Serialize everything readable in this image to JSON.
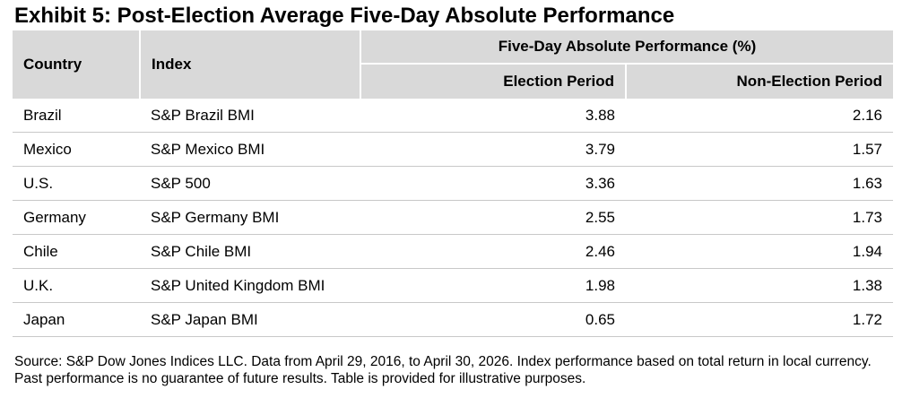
{
  "title": "Exhibit 5: Post-Election Average Five-Day Absolute Performance",
  "header": {
    "country": "Country",
    "index": "Index",
    "group": "Five-Day Absolute Performance (%)",
    "election": "Election Period",
    "non_election": "Non-Election Period"
  },
  "rows": [
    {
      "country": "Brazil",
      "index": "S&P Brazil BMI",
      "election": "3.88",
      "non_election": "2.16"
    },
    {
      "country": "Mexico",
      "index": "S&P Mexico BMI",
      "election": "3.79",
      "non_election": "1.57"
    },
    {
      "country": "U.S.",
      "index": "S&P 500",
      "election": "3.36",
      "non_election": "1.63"
    },
    {
      "country": "Germany",
      "index": "S&P Germany BMI",
      "election": "2.55",
      "non_election": "1.73"
    },
    {
      "country": "Chile",
      "index": "S&P Chile BMI",
      "election": "2.46",
      "non_election": "1.94"
    },
    {
      "country": "U.K.",
      "index": "S&P United Kingdom BMI",
      "election": "1.98",
      "non_election": "1.38"
    },
    {
      "country": "Japan",
      "index": "S&P Japan BMI",
      "election": "0.65",
      "non_election": "1.72"
    }
  ],
  "source": "Source: S&P Dow Jones Indices LLC. Data from April 29, 2016, to April 30, 2026. Index performance based on total return in local currency. Past performance is no guarantee of future results. Table is provided for illustrative purposes.",
  "chart_data": {
    "type": "table",
    "title": "Exhibit 5: Post-Election Average Five-Day Absolute Performance",
    "columns": [
      "Country",
      "Index",
      "Election Period",
      "Non-Election Period"
    ],
    "categories": [
      "Brazil",
      "Mexico",
      "U.S.",
      "Germany",
      "Chile",
      "U.K.",
      "Japan"
    ],
    "series": [
      {
        "name": "Election Period",
        "values": [
          3.88,
          3.79,
          3.36,
          2.55,
          2.46,
          1.98,
          0.65
        ]
      },
      {
        "name": "Non-Election Period",
        "values": [
          2.16,
          1.57,
          1.63,
          1.73,
          1.94,
          1.38,
          1.72
        ]
      }
    ]
  }
}
